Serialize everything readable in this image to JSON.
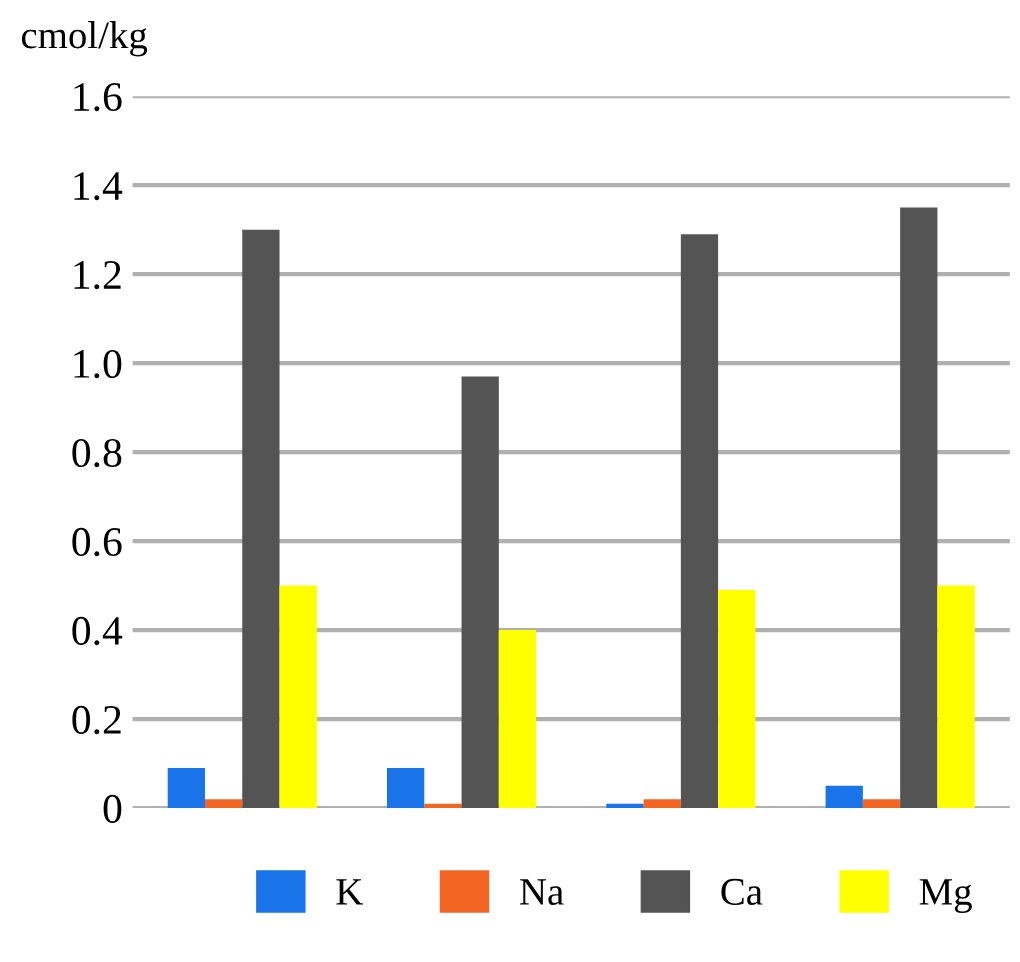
{
  "chart_data": {
    "type": "bar",
    "ylabel": "cmol/kg",
    "categories": [
      null,
      null,
      null,
      null
    ],
    "series": [
      {
        "name": "K",
        "color": "#1874e8",
        "values": [
          0.09,
          0.09,
          0.01,
          0.05
        ]
      },
      {
        "name": "Na",
        "color": "#f26522",
        "values": [
          0.02,
          0.01,
          0.02,
          0.02
        ]
      },
      {
        "name": "Ca",
        "color": "#545454",
        "values": [
          1.3,
          0.97,
          1.29,
          1.35
        ]
      },
      {
        "name": "Mg",
        "color": "#ffff00",
        "values": [
          0.5,
          0.4,
          0.49,
          0.5
        ]
      }
    ],
    "ylim": [
      0,
      1.6
    ],
    "yticks": [
      0,
      0.2,
      0.4,
      0.6,
      0.8,
      {
        "value": 1.0,
        "label": "1.0"
      },
      1.2,
      1.4,
      1.6
    ],
    "grid": "y",
    "legend": "bottom"
  }
}
